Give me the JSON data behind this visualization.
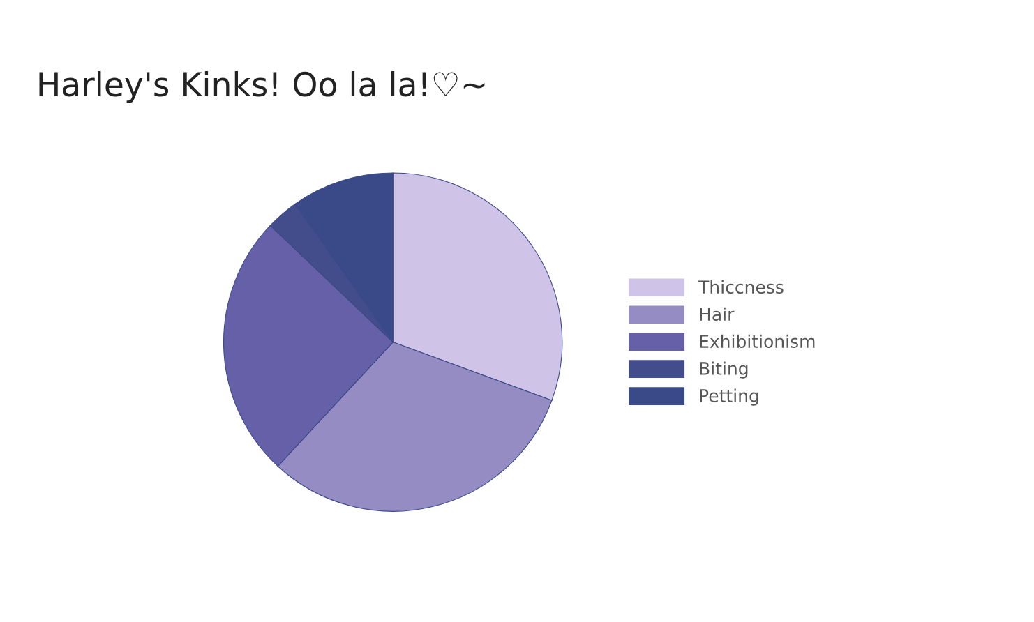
{
  "chart_data": {
    "type": "pie",
    "title": "Harley's Kinks! Oo la la!♡~",
    "categories": [
      "Thiccness",
      "Hair",
      "Exhibitionism",
      "Biting",
      "Petting"
    ],
    "values": [
      30.6,
      31.3,
      25.2,
      3.1,
      9.8
    ],
    "colors": [
      "#cfc4e8",
      "#968cc4",
      "#6660a8",
      "#434d8c",
      "#3a4a88"
    ],
    "legend": "right"
  }
}
